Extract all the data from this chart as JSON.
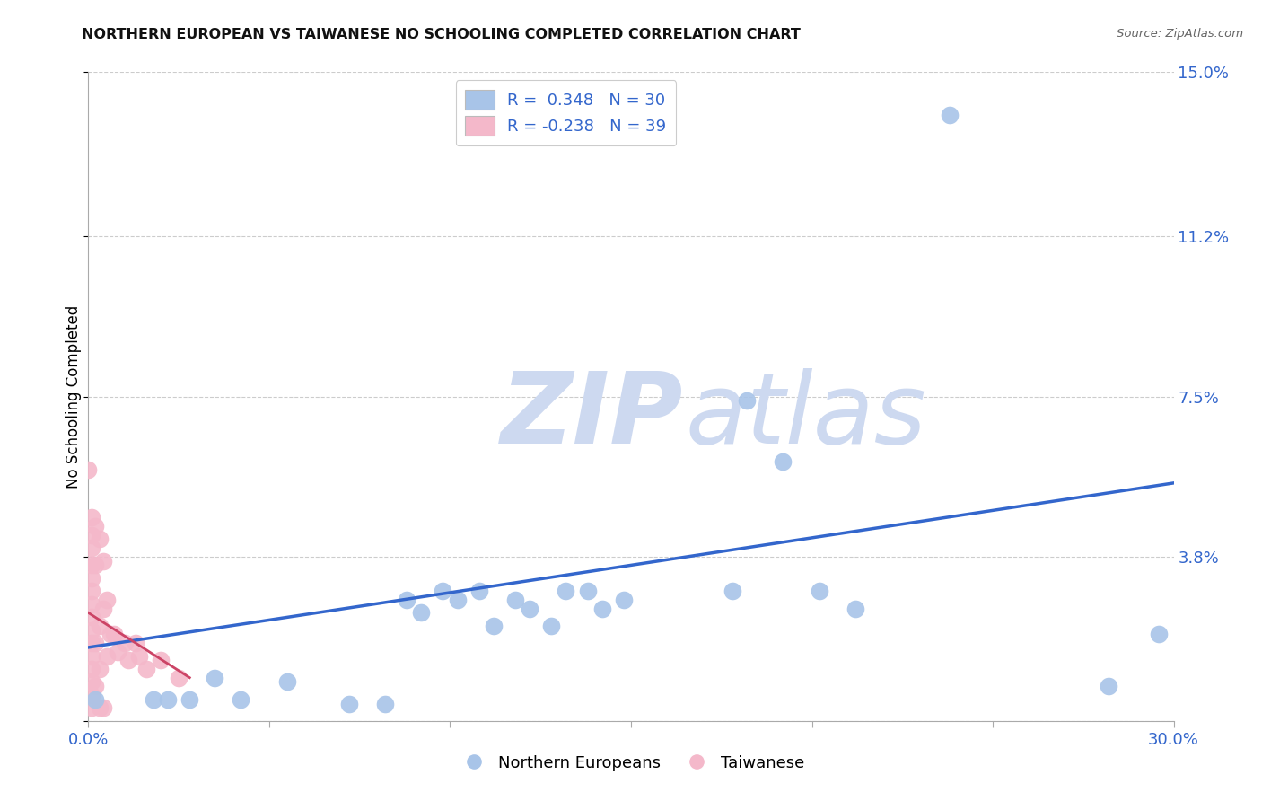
{
  "title": "NORTHERN EUROPEAN VS TAIWANESE NO SCHOOLING COMPLETED CORRELATION CHART",
  "source": "Source: ZipAtlas.com",
  "ylabel": "No Schooling Completed",
  "xlim": [
    0.0,
    0.3
  ],
  "ylim": [
    0.0,
    0.15
  ],
  "xticks": [
    0.0,
    0.05,
    0.1,
    0.15,
    0.2,
    0.25,
    0.3
  ],
  "xtick_labels": [
    "0.0%",
    "",
    "",
    "",
    "",
    "",
    "30.0%"
  ],
  "ytick_labels_right": [
    "",
    "3.8%",
    "7.5%",
    "11.2%",
    "15.0%"
  ],
  "yticks_right": [
    0.0,
    0.038,
    0.075,
    0.112,
    0.15
  ],
  "blue_color": "#a8c4e8",
  "pink_color": "#f4b8ca",
  "blue_line_color": "#3366cc",
  "pink_line_color": "#cc4466",
  "blue_scatter": [
    [
      0.002,
      0.005
    ],
    [
      0.018,
      0.005
    ],
    [
      0.022,
      0.005
    ],
    [
      0.028,
      0.005
    ],
    [
      0.035,
      0.01
    ],
    [
      0.042,
      0.005
    ],
    [
      0.055,
      0.009
    ],
    [
      0.072,
      0.004
    ],
    [
      0.082,
      0.004
    ],
    [
      0.088,
      0.028
    ],
    [
      0.092,
      0.025
    ],
    [
      0.098,
      0.03
    ],
    [
      0.102,
      0.028
    ],
    [
      0.108,
      0.03
    ],
    [
      0.112,
      0.022
    ],
    [
      0.118,
      0.028
    ],
    [
      0.122,
      0.026
    ],
    [
      0.128,
      0.022
    ],
    [
      0.132,
      0.03
    ],
    [
      0.138,
      0.03
    ],
    [
      0.142,
      0.026
    ],
    [
      0.148,
      0.028
    ],
    [
      0.178,
      0.03
    ],
    [
      0.182,
      0.074
    ],
    [
      0.192,
      0.06
    ],
    [
      0.202,
      0.03
    ],
    [
      0.212,
      0.026
    ],
    [
      0.238,
      0.14
    ],
    [
      0.282,
      0.008
    ],
    [
      0.296,
      0.02
    ]
  ],
  "pink_scatter": [
    [
      0.0,
      0.058
    ],
    [
      0.001,
      0.047
    ],
    [
      0.001,
      0.043
    ],
    [
      0.001,
      0.04
    ],
    [
      0.001,
      0.036
    ],
    [
      0.001,
      0.033
    ],
    [
      0.001,
      0.03
    ],
    [
      0.001,
      0.027
    ],
    [
      0.001,
      0.024
    ],
    [
      0.001,
      0.021
    ],
    [
      0.001,
      0.018
    ],
    [
      0.001,
      0.015
    ],
    [
      0.001,
      0.012
    ],
    [
      0.001,
      0.009
    ],
    [
      0.001,
      0.006
    ],
    [
      0.001,
      0.003
    ],
    [
      0.002,
      0.045
    ],
    [
      0.002,
      0.036
    ],
    [
      0.002,
      0.018
    ],
    [
      0.002,
      0.008
    ],
    [
      0.003,
      0.042
    ],
    [
      0.003,
      0.022
    ],
    [
      0.003,
      0.012
    ],
    [
      0.004,
      0.037
    ],
    [
      0.004,
      0.026
    ],
    [
      0.005,
      0.028
    ],
    [
      0.005,
      0.015
    ],
    [
      0.006,
      0.02
    ],
    [
      0.007,
      0.02
    ],
    [
      0.008,
      0.016
    ],
    [
      0.01,
      0.018
    ],
    [
      0.011,
      0.014
    ],
    [
      0.013,
      0.018
    ],
    [
      0.014,
      0.015
    ],
    [
      0.016,
      0.012
    ],
    [
      0.02,
      0.014
    ],
    [
      0.025,
      0.01
    ],
    [
      0.003,
      0.003
    ],
    [
      0.004,
      0.003
    ]
  ],
  "blue_trend_x": [
    0.0,
    0.3
  ],
  "blue_trend_y": [
    0.017,
    0.055
  ],
  "pink_trend_x": [
    0.0,
    0.028
  ],
  "pink_trend_y": [
    0.025,
    0.01
  ]
}
